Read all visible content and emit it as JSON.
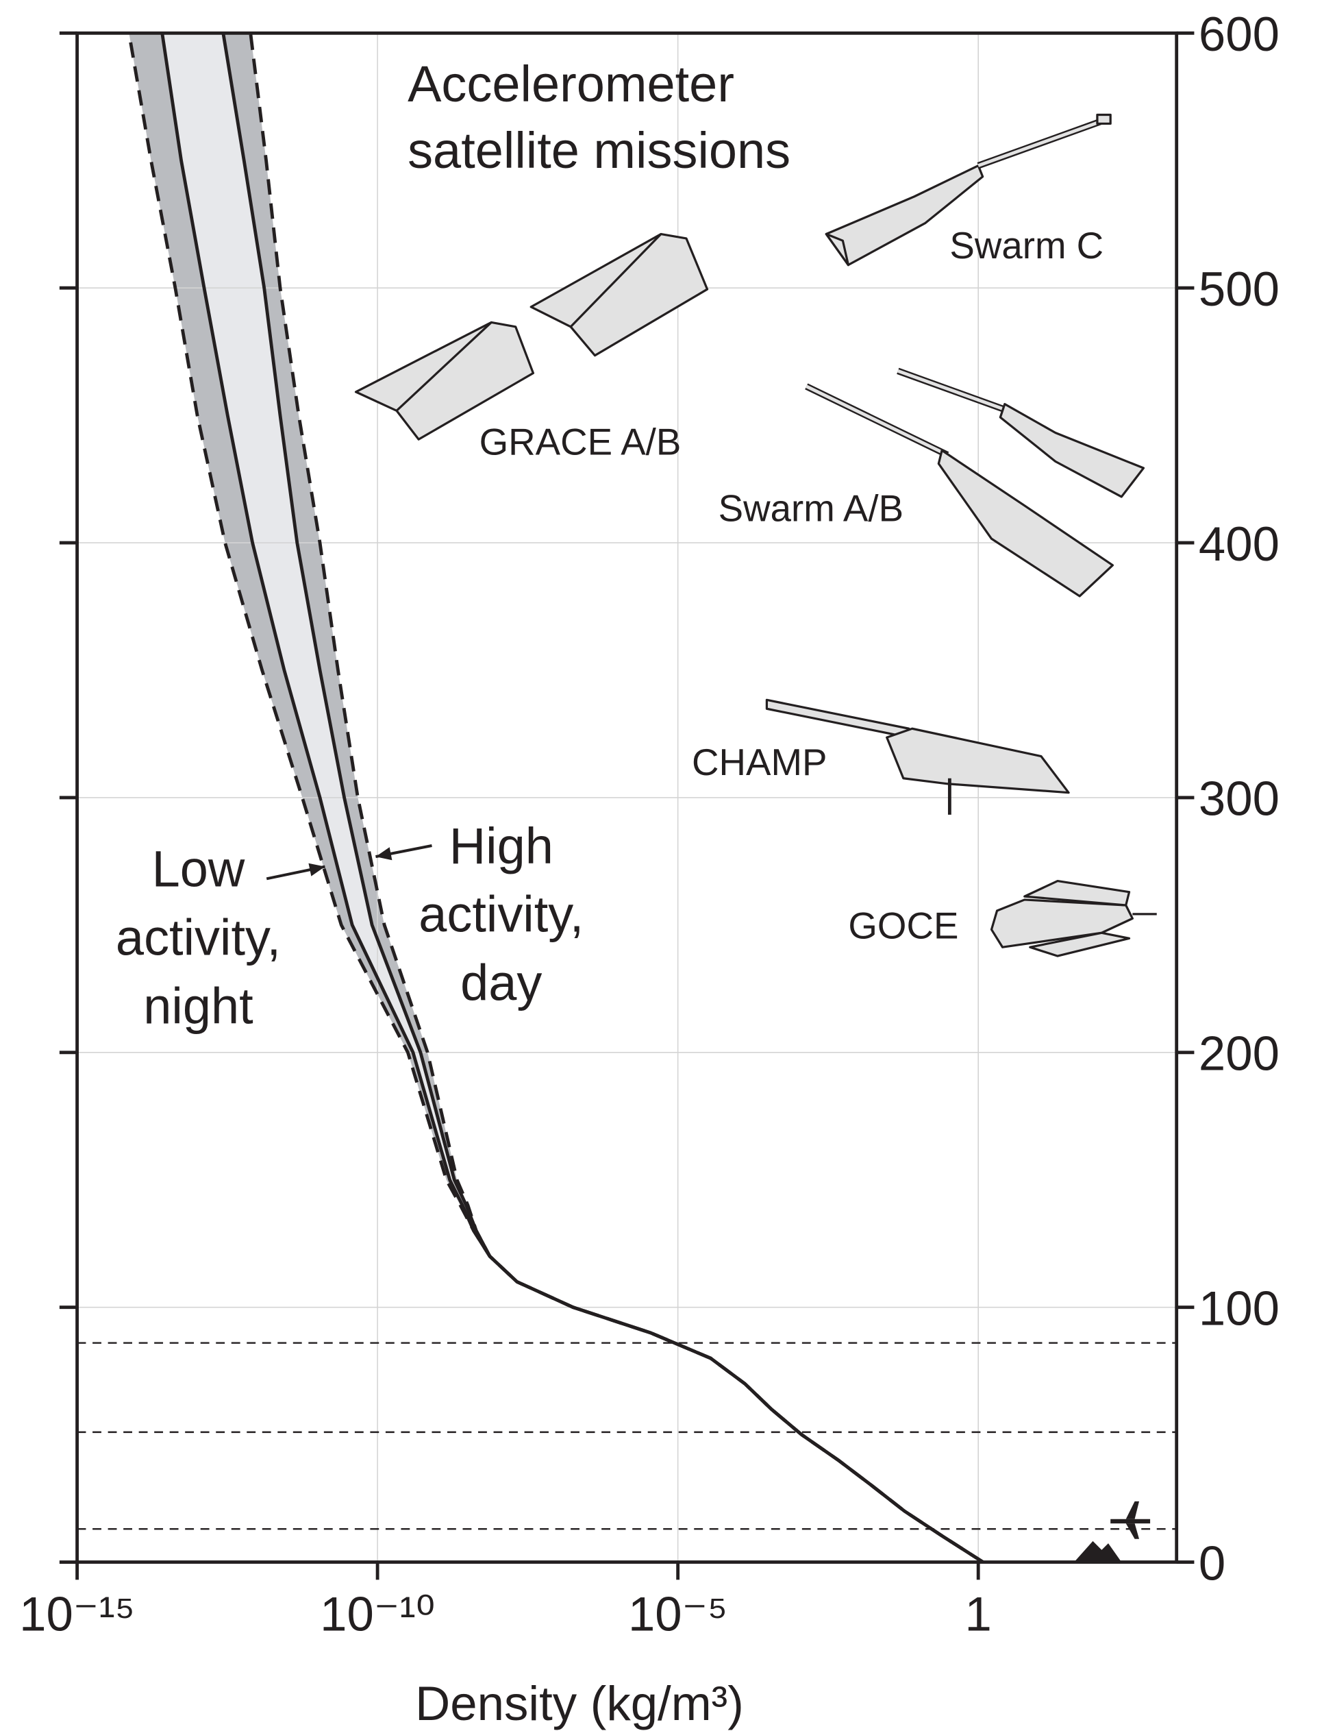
{
  "chart_data": {
    "type": "line",
    "title_lines": [
      "Accelerometer",
      "satellite missions"
    ],
    "x_label": "Density (kg/m³)",
    "x_scale": "log",
    "xlim": [
      1e-15,
      2000
    ],
    "xticks": [
      {
        "value": 1e-15,
        "label": "10⁻¹⁵"
      },
      {
        "value": 1e-10,
        "label": "10⁻¹⁰"
      },
      {
        "value": 1e-05,
        "label": "10⁻⁵"
      },
      1
    ],
    "ylim": [
      0,
      600
    ],
    "yticks": [
      0,
      100,
      200,
      300,
      400,
      500,
      600
    ],
    "y_axis_side": "right",
    "grid": true,
    "y": [
      0,
      10,
      20,
      30,
      40,
      50,
      60,
      70,
      80,
      90,
      100,
      110,
      120,
      130,
      140,
      150,
      200,
      250,
      300,
      350,
      400,
      450,
      500,
      550,
      600
    ],
    "series": [
      {
        "name": "Low activity, night",
        "color": "#231f20",
        "dash": true,
        "values": [
          1.2,
          0.26,
          0.059,
          0.017,
          0.0047,
          0.00115,
          0.00036,
          0.00013,
          3.5e-05,
          3.5e-06,
          1.8e-07,
          2.1e-08,
          7.4e-09,
          4e-09,
          2.4e-09,
          1.4e-09,
          3.2e-10,
          2.5e-11,
          5.6e-12,
          1.2e-12,
          2.9e-13,
          1e-13,
          4.3e-14,
          1.7e-14,
          7.3e-15
        ]
      },
      {
        "color": "#231f20",
        "dash": false,
        "values": [
          1.2,
          0.26,
          0.059,
          0.017,
          0.0047,
          0.00115,
          0.00036,
          0.00013,
          3.5e-05,
          3.5e-06,
          1.8e-07,
          2.1e-08,
          7.4e-09,
          4e-09,
          2.6e-09,
          1.6e-09,
          3.9e-10,
          3.8e-11,
          1.1e-11,
          2.8e-12,
          8.3e-13,
          3.2e-13,
          1.3e-13,
          5.4e-14,
          2.6e-14
        ]
      },
      {
        "color": "#231f20",
        "dash": false,
        "values": [
          1.2,
          0.26,
          0.059,
          0.017,
          0.0047,
          0.00115,
          0.00036,
          0.00013,
          3.5e-05,
          3.5e-06,
          1.8e-07,
          2.1e-08,
          7.4e-09,
          4.4e-09,
          3e-09,
          1.9e-09,
          5.2e-10,
          8.1e-11,
          2.8e-11,
          1.1e-11,
          4.6e-12,
          2.4e-12,
          1.3e-12,
          6e-13,
          2.7e-13
        ]
      },
      {
        "name": "High activity, day",
        "color": "#231f20",
        "dash": true,
        "values": [
          1.2,
          0.26,
          0.059,
          0.017,
          0.0047,
          0.00115,
          0.00036,
          0.00013,
          3.5e-05,
          3.5e-06,
          1.8e-07,
          2.1e-08,
          7.4e-09,
          4.4e-09,
          3.2e-09,
          2.1e-09,
          6.8e-10,
          1.3e-10,
          4.7e-11,
          2.2e-11,
          1.1e-11,
          4.9e-12,
          2.4e-12,
          1.4e-12,
          7.7e-13
        ]
      }
    ],
    "band_colors": [
      "#babcc0",
      "#e7e8eb"
    ],
    "reference_lines": [
      13,
      51,
      86
    ],
    "satellites": [
      "Swarm C",
      "GRACE A/B",
      "Swarm A/B",
      "CHAMP",
      "GOCE"
    ]
  }
}
